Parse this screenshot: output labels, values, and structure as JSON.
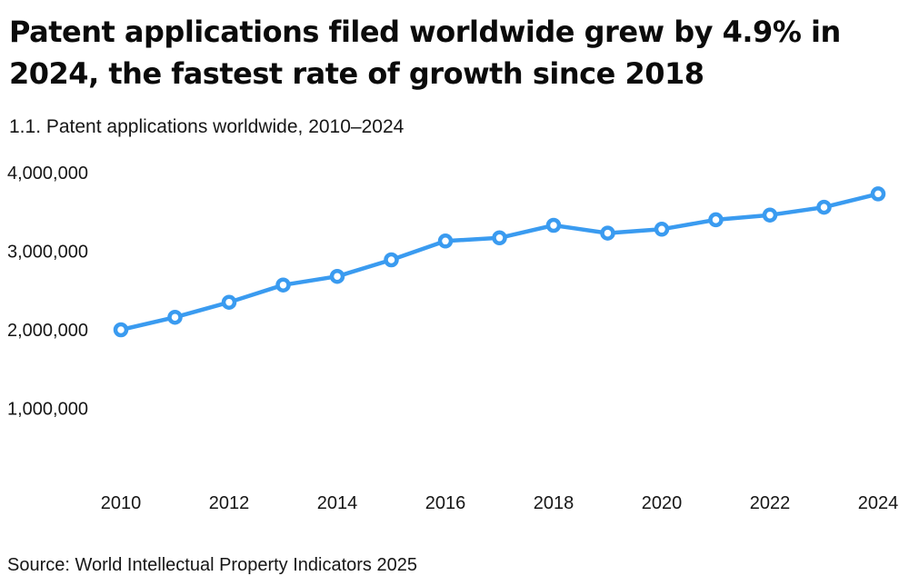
{
  "headline": {
    "line1": "Patent applications filed worldwide grew by 4.9% in",
    "line2": "2024, the fastest rate of growth since 2018"
  },
  "figure_title": "1.1. Patent applications worldwide, 2010–2024",
  "source_note": "Source: World Intellectual Property Indicators 2025",
  "colors": {
    "line": "#3A9BF0",
    "marker_fill": "#FFFFFF",
    "text": "#161616",
    "background": "#FFFFFF"
  },
  "chart_data": {
    "type": "line",
    "title": "1.1. Patent applications worldwide, 2010–2024",
    "xlabel": "",
    "ylabel": "",
    "x": [
      2010,
      2011,
      2012,
      2013,
      2014,
      2015,
      2016,
      2017,
      2018,
      2019,
      2020,
      2021,
      2022,
      2023,
      2024
    ],
    "values": [
      2000000,
      2160000,
      2350000,
      2570000,
      2680000,
      2890000,
      3130000,
      3170000,
      3330000,
      3230000,
      3280000,
      3400000,
      3460000,
      3560000,
      3730000
    ],
    "xticks": [
      2010,
      2012,
      2014,
      2016,
      2018,
      2020,
      2022,
      2024
    ],
    "yticks": [
      {
        "value": 1000000,
        "label": "1,000,000"
      },
      {
        "value": 2000000,
        "label": "2,000,000"
      },
      {
        "value": 3000000,
        "label": "3,000,000"
      },
      {
        "value": 4000000,
        "label": "4,000,000"
      }
    ],
    "ylim": [
      0,
      4000000
    ],
    "grid": false,
    "legend": "none",
    "marker": "open-circle"
  }
}
